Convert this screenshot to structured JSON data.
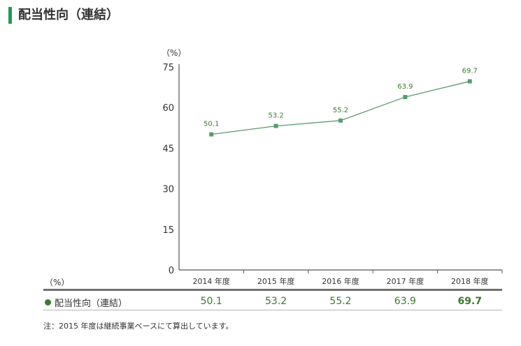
{
  "title": "配当性向（連結）",
  "unit_top": "（%）",
  "unit_table": "（%）",
  "note": "注：2015 年度は継続事業ベースにて算出しています。",
  "colors": {
    "accent": "#1f9a5a",
    "series": "#5b9a6f",
    "label": "#3b7a2e",
    "table_value": "#3b7a2e"
  },
  "chart_data": {
    "type": "line",
    "title": "",
    "categories": [
      "2014 年度",
      "2015 年度",
      "2016 年度",
      "2017 年度",
      "2018 年度"
    ],
    "series": [
      {
        "name": "配当性向（連結）",
        "values": [
          50.1,
          53.2,
          55.2,
          63.9,
          69.7
        ]
      }
    ],
    "data_labels": [
      "50.1",
      "53.2",
      "55.2",
      "63.9",
      "69.7"
    ],
    "y_ticks": [
      0,
      15,
      30,
      45,
      60,
      75
    ],
    "ylim": [
      0,
      75
    ],
    "grid": false,
    "legend": "bottom-table"
  },
  "table": {
    "legend_label": "配当性向（連結）",
    "values": [
      "50.1",
      "53.2",
      "55.2",
      "63.9",
      "69.7"
    ],
    "bold_last": true
  }
}
